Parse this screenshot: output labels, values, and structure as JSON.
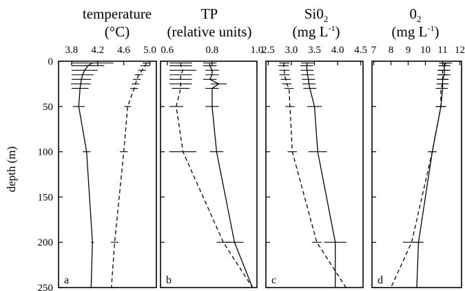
{
  "figure": {
    "ylabel": "depth (m)"
  },
  "chart_data": [
    {
      "type": "line",
      "panel": "a",
      "title_line1": "temperature",
      "title_line2": "(°C)",
      "xlim": [
        3.6,
        5.1
      ],
      "xticks": [
        "3.8",
        "4.2",
        "4.6",
        "5.0"
      ],
      "xtick_values": [
        3.8,
        4.2,
        4.6,
        5.0
      ],
      "ylim": [
        0,
        250
      ],
      "yticks": [
        "0",
        "50",
        "100",
        "150",
        "200",
        "250"
      ],
      "y_inverted": true,
      "grid": false,
      "series": [
        {
          "style": "solid",
          "depth": [
            2,
            5,
            10,
            15,
            20,
            25,
            30,
            50,
            100,
            200,
            250
          ],
          "values": [
            4.12,
            4.05,
            4.0,
            3.97,
            3.95,
            3.94,
            3.93,
            3.91,
            4.03,
            4.12,
            4.1
          ],
          "error": [
            0.32,
            0.25,
            0.2,
            0.17,
            0.15,
            0.15,
            0.13,
            0.09,
            0.06,
            0.02,
            0.05
          ]
        },
        {
          "style": "dashed",
          "depth": [
            2,
            5,
            10,
            15,
            20,
            25,
            30,
            50,
            100,
            200,
            250
          ],
          "values": [
            4.95,
            4.93,
            4.88,
            4.83,
            4.8,
            4.78,
            4.76,
            4.66,
            4.6,
            4.46,
            4.41
          ],
          "error": [
            0.06,
            0.07,
            0.06,
            0.06,
            0.06,
            0.06,
            0.06,
            0.05,
            0.06,
            0.06,
            0.05
          ]
        }
      ]
    },
    {
      "type": "line",
      "panel": "b",
      "title_line1": "TP",
      "title_line2": "(relative units)",
      "xlim": [
        0.57,
        1.0
      ],
      "xticks": [
        "0.6",
        "0.8",
        "1.0"
      ],
      "xtick_values": [
        0.6,
        0.8,
        1.0
      ],
      "ylim": [
        0,
        250
      ],
      "yticks": [
        "0",
        "50",
        "100",
        "150",
        "200",
        "250"
      ],
      "y_inverted": true,
      "grid": false,
      "series": [
        {
          "style": "solid",
          "depth": [
            2,
            5,
            10,
            15,
            20,
            25,
            30,
            50,
            100,
            200,
            250
          ],
          "values": [
            0.79,
            0.79,
            0.8,
            0.8,
            0.79,
            0.83,
            0.8,
            0.8,
            0.82,
            0.9,
            0.98
          ],
          "error": [
            0.03,
            0.03,
            0.03,
            0.03,
            0.03,
            0.035,
            0.03,
            0.03,
            0.03,
            0.04,
            0.0
          ]
        },
        {
          "style": "dashed",
          "depth": [
            2,
            5,
            10,
            15,
            20,
            25,
            30,
            50,
            100,
            200,
            250
          ],
          "values": [
            0.66,
            0.66,
            0.67,
            0.66,
            0.66,
            0.66,
            0.66,
            0.64,
            0.67,
            0.85,
            0.98
          ],
          "error": [
            0.05,
            0.05,
            0.06,
            0.05,
            0.05,
            0.05,
            0.04,
            0.03,
            0.06,
            0.03,
            0.0
          ]
        }
      ]
    },
    {
      "type": "line",
      "panel": "c",
      "title_line1": "Si0",
      "title_sub": "2",
      "title_line2_pre": "(mg L",
      "title_line2_sup": "-1",
      "title_line2_post": ")",
      "xlim": [
        2.45,
        4.55
      ],
      "xticks": [
        "2.5",
        "3.0",
        "3.5",
        "4.0",
        "4.5"
      ],
      "xtick_values": [
        2.5,
        3.0,
        3.5,
        4.0,
        4.5
      ],
      "ylim": [
        0,
        250
      ],
      "yticks": [
        "0",
        "50",
        "100",
        "150",
        "200",
        "250"
      ],
      "y_inverted": true,
      "grid": false,
      "series": [
        {
          "style": "solid",
          "depth": [
            2,
            5,
            10,
            15,
            20,
            25,
            30,
            50,
            100,
            200,
            250
          ],
          "values": [
            3.35,
            3.33,
            3.34,
            3.35,
            3.37,
            3.38,
            3.4,
            3.5,
            3.57,
            3.95,
            3.95
          ],
          "error": [
            0.14,
            0.14,
            0.14,
            0.14,
            0.14,
            0.14,
            0.14,
            0.16,
            0.2,
            0.24,
            0.21
          ]
        },
        {
          "style": "dashed",
          "depth": [
            2,
            5,
            10,
            15,
            20,
            25,
            30,
            50,
            100,
            200,
            250
          ],
          "values": [
            2.85,
            2.83,
            2.85,
            2.85,
            2.88,
            2.9,
            2.95,
            2.97,
            3.02,
            3.55,
            4.18
          ],
          "error": [
            0.11,
            0.11,
            0.11,
            0.11,
            0.11,
            0.1,
            0.1,
            0.1,
            0.1,
            0.1,
            0.14
          ]
        }
      ]
    },
    {
      "type": "line",
      "panel": "d",
      "title_line1": "0",
      "title_sub": "2",
      "title_line2_pre": "(mg L",
      "title_line2_sup": "-1",
      "title_line2_post": ")",
      "xlim": [
        6.9,
        12.1
      ],
      "xticks": [
        "7",
        "8",
        "9",
        "10",
        "11",
        "12"
      ],
      "xtick_values": [
        7,
        8,
        9,
        10,
        11,
        12
      ],
      "ylim": [
        0,
        250
      ],
      "yticks": [
        "0",
        "50",
        "100",
        "150",
        "200",
        "250"
      ],
      "y_inverted": true,
      "grid": false,
      "series": [
        {
          "style": "solid",
          "depth": [
            2,
            5,
            10,
            15,
            20,
            25,
            30,
            50,
            100,
            200,
            250
          ],
          "values": [
            11.2,
            11.1,
            11.1,
            11.1,
            11.0,
            11.0,
            11.0,
            10.9,
            10.4,
            9.6,
            9.5
          ],
          "error": [
            0.35,
            0.35,
            0.35,
            0.35,
            0.35,
            0.35,
            0.3,
            0.3,
            0.25,
            0.3,
            0.25
          ]
        },
        {
          "style": "dashed",
          "depth": [
            2,
            5,
            10,
            15,
            20,
            25,
            30,
            50,
            100,
            200,
            250
          ],
          "values": [
            11.1,
            11.1,
            11.0,
            11.0,
            11.0,
            11.0,
            10.9,
            10.9,
            10.4,
            9.2,
            8.0
          ],
          "error": [
            0.3,
            0.3,
            0.3,
            0.3,
            0.3,
            0.3,
            0.3,
            0.3,
            0.25,
            0.5,
            0.6
          ]
        }
      ]
    }
  ]
}
